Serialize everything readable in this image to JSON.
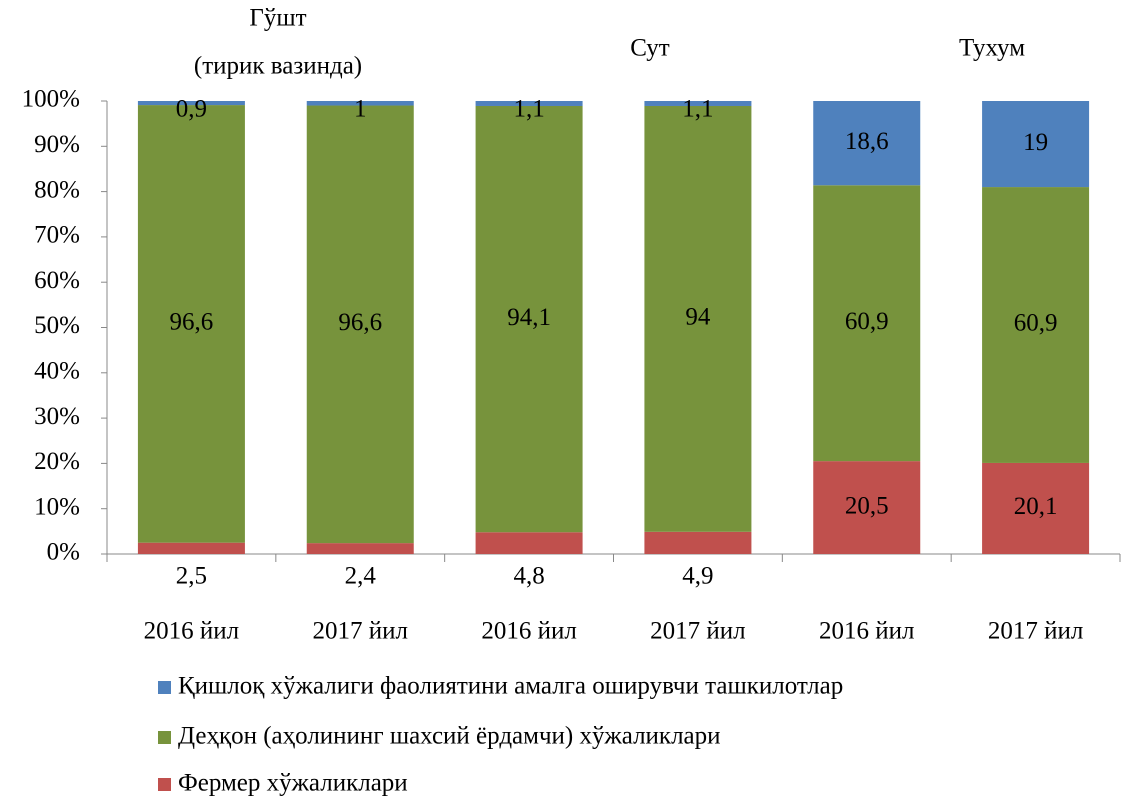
{
  "chart_data": {
    "type": "stacked_bar_percent",
    "annotations": [
      "Гўшт",
      "(тирик вазинда)",
      "Сут",
      "Тухум"
    ],
    "categories": [
      "2016 йил",
      "2017 йил",
      "2016 йил",
      "2017 йил",
      "2016 йил",
      "2017 йил"
    ],
    "series": [
      {
        "name": "Фермер хўжаликлари",
        "color": "#c0504d",
        "values": [
          2.5,
          2.4,
          4.8,
          4.9,
          20.5,
          20.1
        ],
        "value_labels": [
          "2,5",
          "2,4",
          "4,8",
          "4,9",
          "20,5",
          "20,1"
        ]
      },
      {
        "name": "Деҳқон (аҳолининг шахсий ёрдамчи) хўжаликлари",
        "color": "#77933c",
        "values": [
          96.6,
          96.6,
          94.1,
          94,
          60.9,
          60.9
        ],
        "value_labels": [
          "96,6",
          "96,6",
          "94,1",
          "94",
          "60,9",
          "60,9"
        ]
      },
      {
        "name": "Қишлоқ хўжалиги фаолиятини амалга оширувчи ташкилотлар",
        "color": "#4f81bd",
        "values": [
          0.9,
          1,
          1.1,
          1.1,
          18.6,
          19
        ],
        "value_labels": [
          "0,9",
          "1",
          "1,1",
          "1,1",
          "18,6",
          "19"
        ]
      }
    ],
    "ylim": [
      0,
      100
    ],
    "yticks": [
      {
        "value": 0,
        "label": "0%"
      },
      {
        "value": 10,
        "label": "10%"
      },
      {
        "value": 20,
        "label": "20%"
      },
      {
        "value": 30,
        "label": "30%"
      },
      {
        "value": 40,
        "label": "40%"
      },
      {
        "value": 50,
        "label": "50%"
      },
      {
        "value": 60,
        "label": "60%"
      },
      {
        "value": 70,
        "label": "70%"
      },
      {
        "value": 80,
        "label": "80%"
      },
      {
        "value": 90,
        "label": "90%"
      },
      {
        "value": 100,
        "label": "100%"
      }
    ],
    "legend": "bottom"
  }
}
